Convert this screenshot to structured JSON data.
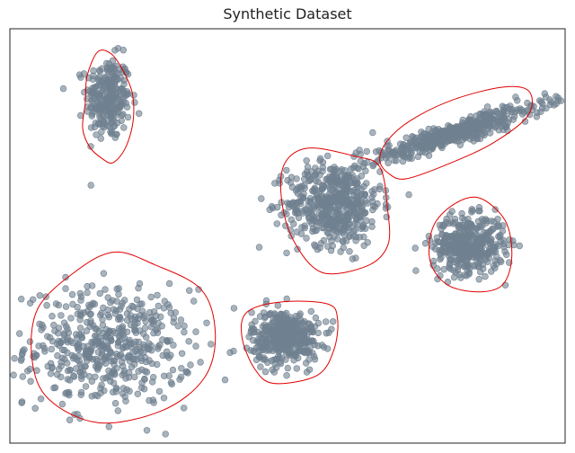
{
  "chart_data": {
    "type": "scatter",
    "title": "Synthetic Dataset",
    "xlabel": "",
    "ylabel": "",
    "axes_ticks": "none",
    "grid": false,
    "point_color": "#708090",
    "boundary_color": "#e00000",
    "xlim": [
      0,
      100
    ],
    "ylim": [
      0,
      100
    ],
    "clusters": [
      {
        "cx": 17.7,
        "cy": 83.2,
        "sx": 2.0,
        "sy": 5.0,
        "rho": 0.0,
        "count": 260,
        "outline": [
          [
            15.8,
            94.4
          ],
          [
            18.1,
            94.1
          ],
          [
            20.1,
            90.6
          ],
          [
            22.0,
            84.7
          ],
          [
            22.2,
            77.8
          ],
          [
            20.8,
            71.2
          ],
          [
            18.6,
            67.7
          ],
          [
            16.7,
            68.6
          ],
          [
            14.4,
            71.4
          ],
          [
            13.1,
            76.0
          ],
          [
            13.6,
            82.3
          ],
          [
            13.9,
            88.6
          ]
        ]
      },
      {
        "cx": 17.8,
        "cy": 23.2,
        "sx": 7.5,
        "sy": 7.0,
        "rho": 0.0,
        "count": 520,
        "outline": [
          [
            16.0,
            4.9
          ],
          [
            27.5,
            7.9
          ],
          [
            35.0,
            15.7
          ],
          [
            37.0,
            26.3
          ],
          [
            34.5,
            37.0
          ],
          [
            26.0,
            43.1
          ],
          [
            18.8,
            46.1
          ],
          [
            11.9,
            41.5
          ],
          [
            5.0,
            32.4
          ],
          [
            4.0,
            20.1
          ],
          [
            7.0,
            10.6
          ]
        ]
      },
      {
        "cx": 58.4,
        "cy": 57.8,
        "sx": 4.2,
        "sy": 5.0,
        "rho": 0.0,
        "count": 520,
        "outline": [
          [
            56.2,
            41.2
          ],
          [
            64.4,
            42.8
          ],
          [
            68.1,
            47.9
          ],
          [
            68.0,
            56.8
          ],
          [
            66.6,
            66.7
          ],
          [
            62.2,
            69.2
          ],
          [
            53.8,
            71.2
          ],
          [
            49.5,
            67.5
          ],
          [
            48.9,
            59.2
          ],
          [
            51.0,
            49.1
          ]
        ]
      },
      {
        "cx": 82.6,
        "cy": 47.9,
        "sx": 3.2,
        "sy": 3.4,
        "rho": 0.0,
        "count": 420,
        "outline": [
          [
            84.5,
            36.5
          ],
          [
            88.8,
            38.3
          ],
          [
            90.4,
            45.2
          ],
          [
            89.2,
            53.7
          ],
          [
            84.5,
            59.2
          ],
          [
            79.8,
            57.5
          ],
          [
            76.2,
            52.1
          ],
          [
            75.7,
            43.9
          ],
          [
            78.8,
            38.2
          ]
        ]
      },
      {
        "cx": 49.6,
        "cy": 25.6,
        "sx": 3.0,
        "sy": 3.2,
        "rho": 0.0,
        "count": 420,
        "outline": [
          [
            47.6,
            14.4
          ],
          [
            55.4,
            16.4
          ],
          [
            58.4,
            22.7
          ],
          [
            59.0,
            30.1
          ],
          [
            57.2,
            33.6
          ],
          [
            49.1,
            34.1
          ],
          [
            42.7,
            31.6
          ],
          [
            41.8,
            25.6
          ],
          [
            44.1,
            17.9
          ]
        ]
      },
      {
        "cx": 80.5,
        "cy": 75.0,
        "sx": 8.0,
        "sy": 3.7,
        "rho": 0.93,
        "count": 520,
        "outline": [
          [
            71.4,
            63.8
          ],
          [
            79.2,
            67.5
          ],
          [
            87.1,
            72.5
          ],
          [
            93.3,
            79.0
          ],
          [
            93.5,
            84.9
          ],
          [
            88.7,
            85.9
          ],
          [
            79.7,
            82.8
          ],
          [
            72.2,
            77.9
          ],
          [
            68.0,
            73.0
          ],
          [
            66.6,
            68.4
          ],
          [
            68.2,
            65.1
          ]
        ]
      }
    ]
  }
}
